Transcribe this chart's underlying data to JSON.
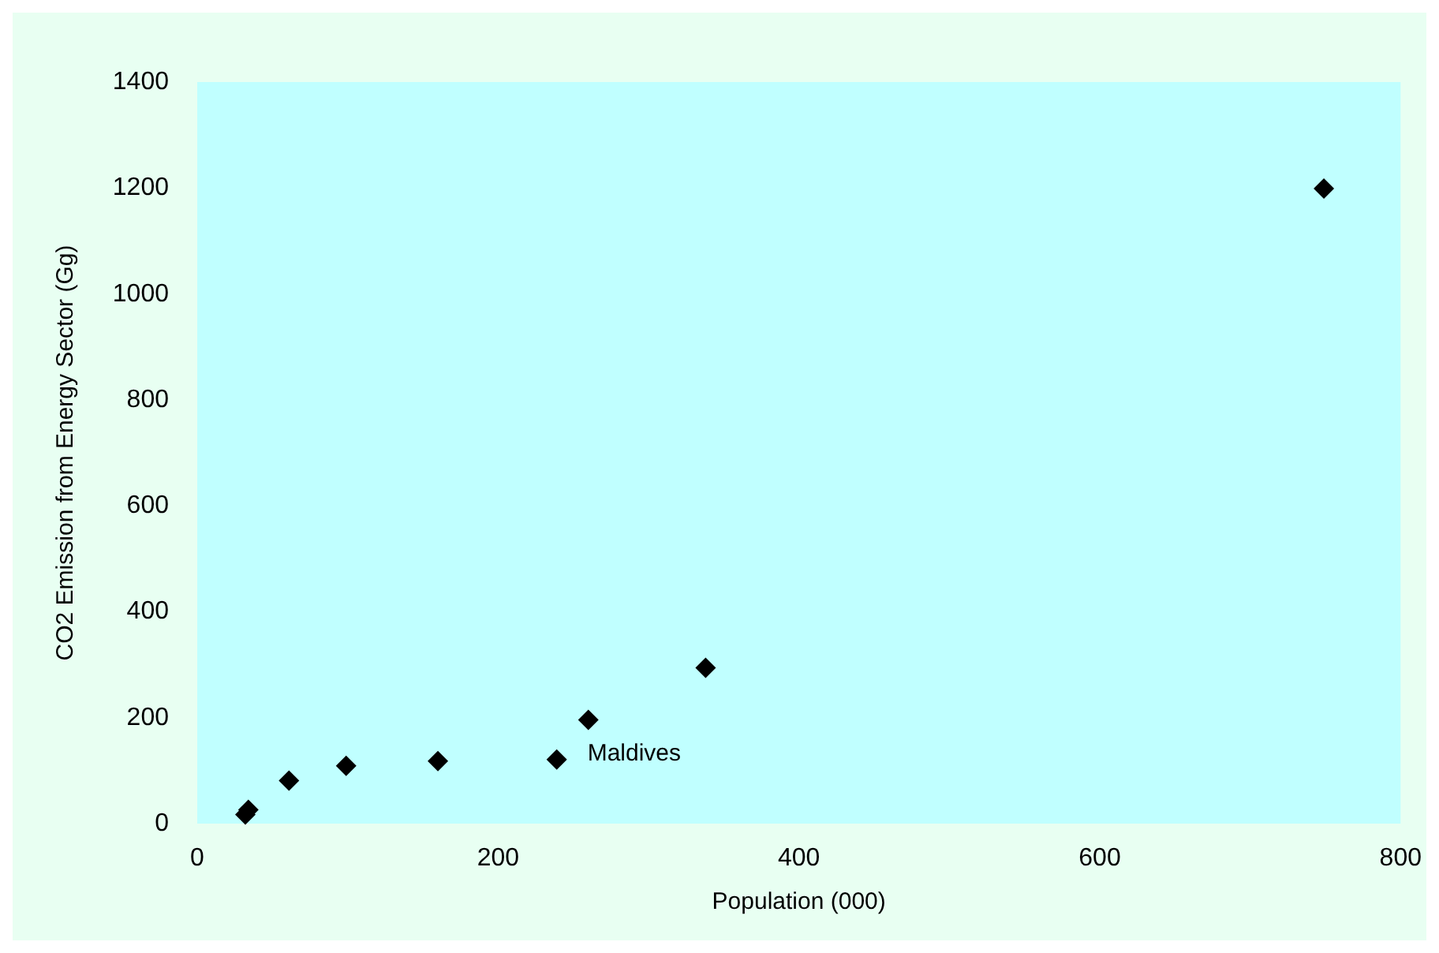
{
  "chart_data": {
    "type": "scatter",
    "xlabel": "Population (000)",
    "ylabel": "CO2 Emission from Energy Sector (Gg)",
    "x": [
      32,
      34,
      61,
      99,
      160,
      239,
      260,
      338,
      749
    ],
    "values": [
      17,
      26,
      81,
      109,
      118,
      121,
      196,
      294,
      1199
    ],
    "color": "#000000",
    "marker": "diamond",
    "xlim": [
      0,
      800
    ],
    "xticks": [
      0,
      200,
      400,
      600,
      800
    ],
    "ylim": [
      0,
      1400
    ],
    "yticks": [
      0,
      200,
      400,
      600,
      800,
      1000,
      1200,
      1400
    ],
    "grid": false,
    "annotations": [
      {
        "text": "Maldives",
        "x": 239,
        "y": 121
      }
    ]
  }
}
